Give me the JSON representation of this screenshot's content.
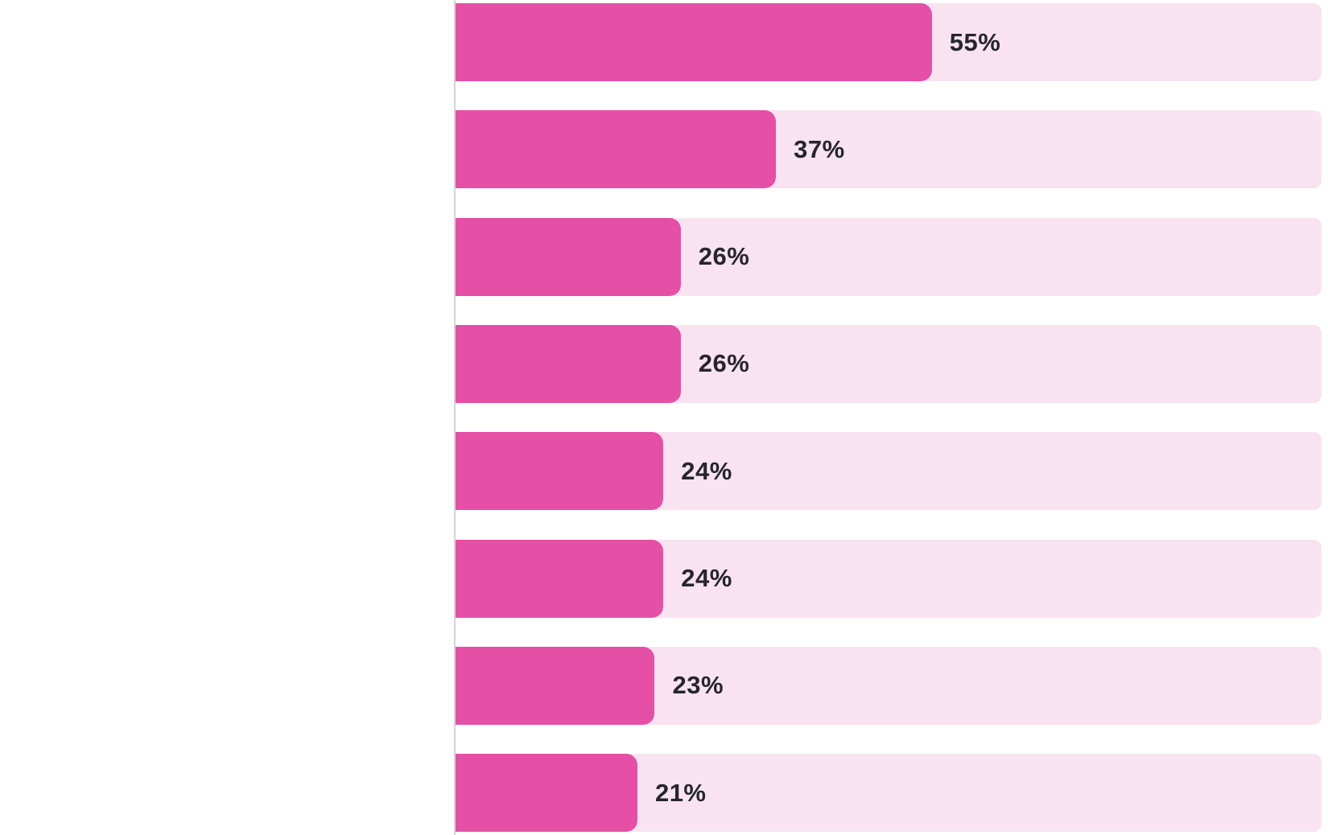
{
  "chart_data": {
    "type": "bar",
    "orientation": "horizontal",
    "title": "",
    "xlabel": "",
    "ylabel": "",
    "xlim": [
      0,
      100
    ],
    "grid": false,
    "legend": null,
    "value_suffix": "%",
    "categories": [
      "",
      "",
      "",
      "",
      "",
      "",
      "",
      ""
    ],
    "values": [
      55,
      37,
      26,
      26,
      24,
      24,
      23,
      21
    ],
    "bars": [
      {
        "value": 55,
        "label": "55%"
      },
      {
        "value": 37,
        "label": "37%"
      },
      {
        "value": 26,
        "label": "26%"
      },
      {
        "value": 26,
        "label": "26%"
      },
      {
        "value": 24,
        "label": "24%"
      },
      {
        "value": 24,
        "label": "24%"
      },
      {
        "value": 23,
        "label": "23%"
      },
      {
        "value": 21,
        "label": "21%"
      }
    ]
  },
  "style": {
    "bar_fill_color": "#e64fa6",
    "bar_track_color": "#f9e3f0",
    "axis_line_color": "#d4d4d4",
    "value_label_color": "#24262b",
    "background_color": "#ffffff"
  }
}
